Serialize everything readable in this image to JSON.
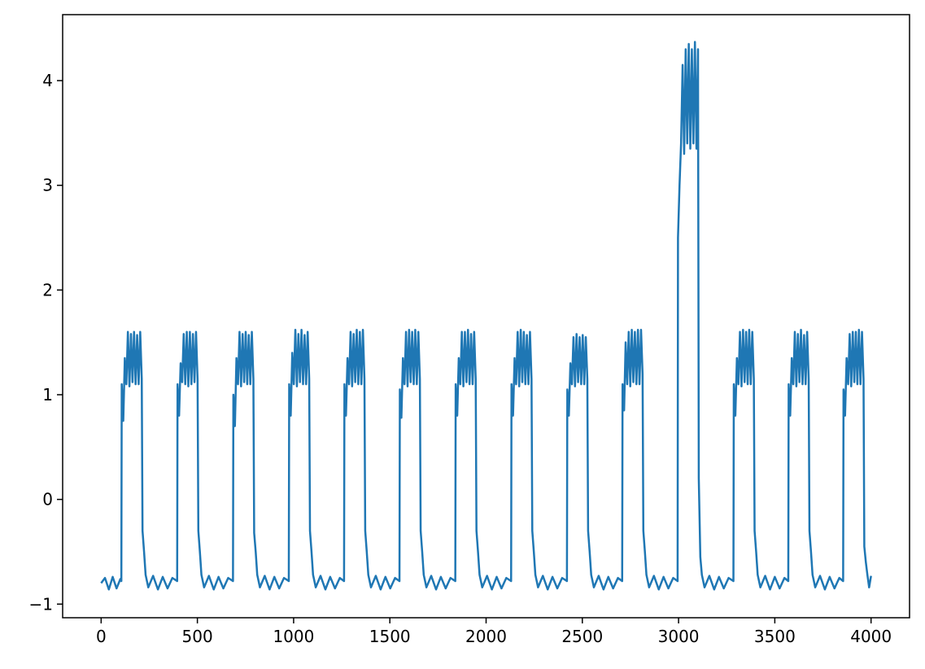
{
  "chart_data": {
    "type": "line",
    "color": "#1f77b4",
    "xlim": [
      -200,
      4200
    ],
    "ylim": [
      -1.13,
      4.63
    ],
    "xticks": [
      0,
      500,
      1000,
      1500,
      2000,
      2500,
      3000,
      3500,
      4000
    ],
    "yticks": [
      {
        "value": -1,
        "label": "−1"
      },
      0,
      1,
      2,
      3,
      4
    ],
    "x": [
      0,
      20,
      40,
      60,
      80,
      100,
      105,
      107,
      115,
      123,
      131,
      139,
      147,
      155,
      163,
      171,
      179,
      187,
      195,
      203,
      211,
      215,
      223,
      231,
      245,
      270,
      295,
      320,
      345,
      370,
      395,
      397,
      405,
      413,
      421,
      429,
      437,
      445,
      453,
      461,
      469,
      477,
      485,
      493,
      501,
      505,
      513,
      521,
      535,
      560,
      585,
      610,
      635,
      660,
      685,
      687,
      695,
      703,
      711,
      719,
      727,
      735,
      743,
      751,
      759,
      767,
      775,
      783,
      791,
      795,
      803,
      811,
      825,
      850,
      875,
      900,
      925,
      950,
      975,
      977,
      985,
      993,
      1001,
      1009,
      1017,
      1025,
      1033,
      1041,
      1049,
      1057,
      1065,
      1073,
      1081,
      1085,
      1093,
      1101,
      1115,
      1140,
      1165,
      1190,
      1215,
      1240,
      1262,
      1264,
      1272,
      1280,
      1288,
      1296,
      1304,
      1312,
      1320,
      1328,
      1336,
      1344,
      1352,
      1360,
      1368,
      1372,
      1380,
      1388,
      1402,
      1427,
      1452,
      1477,
      1502,
      1527,
      1550,
      1552,
      1560,
      1568,
      1576,
      1584,
      1592,
      1600,
      1608,
      1616,
      1624,
      1632,
      1640,
      1648,
      1656,
      1660,
      1668,
      1676,
      1690,
      1715,
      1740,
      1765,
      1790,
      1815,
      1840,
      1842,
      1850,
      1858,
      1866,
      1874,
      1882,
      1890,
      1898,
      1906,
      1914,
      1922,
      1930,
      1938,
      1946,
      1950,
      1958,
      1966,
      1980,
      2005,
      2030,
      2055,
      2080,
      2105,
      2130,
      2132,
      2140,
      2148,
      2156,
      2164,
      2172,
      2180,
      2188,
      2196,
      2204,
      2212,
      2220,
      2228,
      2236,
      2240,
      2248,
      2256,
      2270,
      2295,
      2320,
      2345,
      2370,
      2395,
      2420,
      2422,
      2430,
      2438,
      2446,
      2454,
      2462,
      2470,
      2478,
      2486,
      2494,
      2502,
      2510,
      2518,
      2526,
      2530,
      2538,
      2546,
      2560,
      2585,
      2610,
      2635,
      2660,
      2685,
      2707,
      2709,
      2717,
      2725,
      2733,
      2741,
      2749,
      2757,
      2765,
      2773,
      2781,
      2789,
      2797,
      2805,
      2813,
      2817,
      2825,
      2833,
      2847,
      2872,
      2897,
      2922,
      2947,
      2972,
      2995,
      2997,
      3005,
      3013,
      3021,
      3029,
      3037,
      3045,
      3053,
      3061,
      3069,
      3077,
      3085,
      3093,
      3101,
      3105,
      3113,
      3121,
      3135,
      3160,
      3185,
      3210,
      3235,
      3260,
      3285,
      3287,
      3295,
      3303,
      3311,
      3319,
      3327,
      3335,
      3343,
      3351,
      3359,
      3367,
      3375,
      3383,
      3391,
      3395,
      3403,
      3411,
      3425,
      3450,
      3475,
      3500,
      3525,
      3550,
      3570,
      3572,
      3580,
      3588,
      3596,
      3604,
      3612,
      3620,
      3628,
      3636,
      3644,
      3652,
      3660,
      3668,
      3676,
      3680,
      3688,
      3696,
      3710,
      3735,
      3760,
      3785,
      3810,
      3835,
      3855,
      3857,
      3865,
      3873,
      3881,
      3889,
      3897,
      3905,
      3913,
      3921,
      3929,
      3937,
      3945,
      3953,
      3961,
      3965,
      3973,
      3981,
      3990,
      4000
    ],
    "values": [
      -0.8,
      -0.75,
      -0.86,
      -0.74,
      -0.85,
      -0.76,
      -0.78,
      1.1,
      0.75,
      1.35,
      1.1,
      1.6,
      1.08,
      1.58,
      1.12,
      1.6,
      1.1,
      1.57,
      1.1,
      1.6,
      1.15,
      -0.3,
      -0.5,
      -0.72,
      -0.84,
      -0.73,
      -0.86,
      -0.74,
      -0.85,
      -0.75,
      -0.78,
      1.1,
      0.8,
      1.3,
      1.12,
      1.58,
      1.1,
      1.6,
      1.08,
      1.6,
      1.1,
      1.58,
      1.12,
      1.6,
      1.15,
      -0.3,
      -0.5,
      -0.72,
      -0.84,
      -0.73,
      -0.86,
      -0.74,
      -0.85,
      -0.75,
      -0.78,
      1.0,
      0.7,
      1.35,
      1.1,
      1.6,
      1.08,
      1.58,
      1.12,
      1.6,
      1.1,
      1.57,
      1.1,
      1.6,
      1.15,
      -0.32,
      -0.5,
      -0.72,
      -0.84,
      -0.73,
      -0.86,
      -0.74,
      -0.85,
      -0.75,
      -0.78,
      1.1,
      0.8,
      1.4,
      1.1,
      1.62,
      1.08,
      1.58,
      1.12,
      1.62,
      1.1,
      1.57,
      1.1,
      1.6,
      1.15,
      -0.3,
      -0.5,
      -0.72,
      -0.84,
      -0.73,
      -0.86,
      -0.74,
      -0.85,
      -0.75,
      -0.78,
      1.1,
      0.8,
      1.35,
      1.1,
      1.6,
      1.08,
      1.58,
      1.12,
      1.62,
      1.1,
      1.6,
      1.1,
      1.62,
      1.15,
      -0.3,
      -0.5,
      -0.72,
      -0.84,
      -0.73,
      -0.86,
      -0.74,
      -0.85,
      -0.75,
      -0.78,
      1.05,
      0.78,
      1.35,
      1.1,
      1.6,
      1.08,
      1.62,
      1.12,
      1.6,
      1.1,
      1.62,
      1.1,
      1.6,
      1.15,
      -0.3,
      -0.5,
      -0.72,
      -0.84,
      -0.73,
      -0.86,
      -0.74,
      -0.85,
      -0.75,
      -0.78,
      1.1,
      0.8,
      1.35,
      1.1,
      1.6,
      1.08,
      1.6,
      1.12,
      1.62,
      1.1,
      1.58,
      1.1,
      1.6,
      1.15,
      -0.3,
      -0.5,
      -0.72,
      -0.84,
      -0.73,
      -0.86,
      -0.74,
      -0.85,
      -0.75,
      -0.78,
      1.1,
      0.8,
      1.35,
      1.1,
      1.6,
      1.08,
      1.62,
      1.12,
      1.6,
      1.1,
      1.57,
      1.1,
      1.6,
      1.15,
      -0.3,
      -0.5,
      -0.72,
      -0.84,
      -0.73,
      -0.86,
      -0.74,
      -0.85,
      -0.75,
      -0.78,
      1.05,
      0.8,
      1.3,
      1.1,
      1.55,
      1.08,
      1.58,
      1.12,
      1.55,
      1.1,
      1.57,
      1.1,
      1.55,
      1.15,
      -0.3,
      -0.5,
      -0.72,
      -0.84,
      -0.73,
      -0.86,
      -0.74,
      -0.85,
      -0.75,
      -0.78,
      1.1,
      0.85,
      1.5,
      1.1,
      1.6,
      1.08,
      1.62,
      1.12,
      1.6,
      1.1,
      1.62,
      1.1,
      1.62,
      1.2,
      -0.3,
      -0.5,
      -0.72,
      -0.84,
      -0.73,
      -0.86,
      -0.74,
      -0.85,
      -0.75,
      -0.78,
      2.5,
      3.0,
      3.4,
      4.15,
      3.3,
      4.3,
      3.4,
      4.35,
      3.35,
      4.3,
      3.4,
      4.37,
      3.35,
      4.3,
      0.2,
      -0.55,
      -0.72,
      -0.84,
      -0.73,
      -0.86,
      -0.74,
      -0.85,
      -0.75,
      -0.78,
      1.1,
      0.8,
      1.35,
      1.1,
      1.6,
      1.08,
      1.62,
      1.12,
      1.6,
      1.1,
      1.62,
      1.1,
      1.6,
      1.15,
      -0.3,
      -0.5,
      -0.72,
      -0.84,
      -0.73,
      -0.86,
      -0.74,
      -0.85,
      -0.75,
      -0.78,
      1.1,
      0.8,
      1.35,
      1.1,
      1.6,
      1.08,
      1.58,
      1.12,
      1.62,
      1.1,
      1.57,
      1.1,
      1.6,
      1.15,
      -0.3,
      -0.5,
      -0.72,
      -0.84,
      -0.73,
      -0.86,
      -0.74,
      -0.85,
      -0.75,
      -0.78,
      1.05,
      0.8,
      1.35,
      1.1,
      1.58,
      1.08,
      1.6,
      1.12,
      1.6,
      1.1,
      1.62,
      1.1,
      1.6,
      1.15,
      -0.45,
      -0.6,
      -0.72,
      -0.84,
      -0.73
    ]
  }
}
